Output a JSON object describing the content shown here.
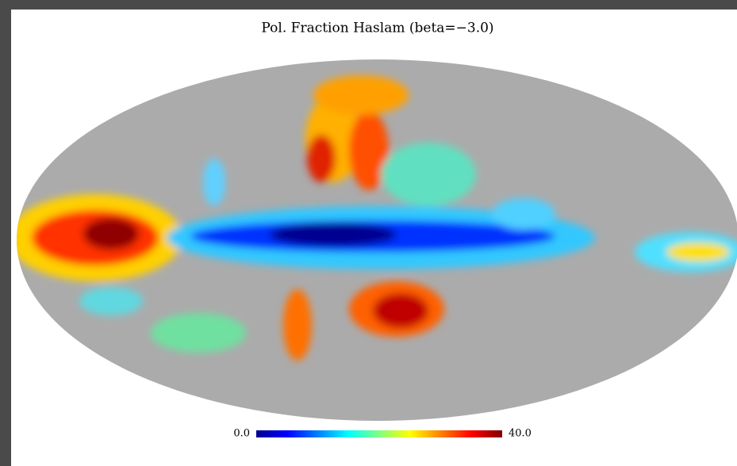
{
  "chart_data": {
    "type": "healpix-map",
    "title": "Pol. Fraction Haslam (beta=−3.0)",
    "clim": [
      0,
      40
    ],
    "cticks": [
      {
        "value": 0,
        "label": "0.0"
      },
      {
        "value": 40,
        "label": "40.0"
      }
    ],
    "colors": [
      "#00008f",
      "#0000ff",
      "#0080ff",
      "#00ffff",
      "#80ff80",
      "#ffff00",
      "#ff8000",
      "#ff0000",
      "#800000"
    ]
  }
}
